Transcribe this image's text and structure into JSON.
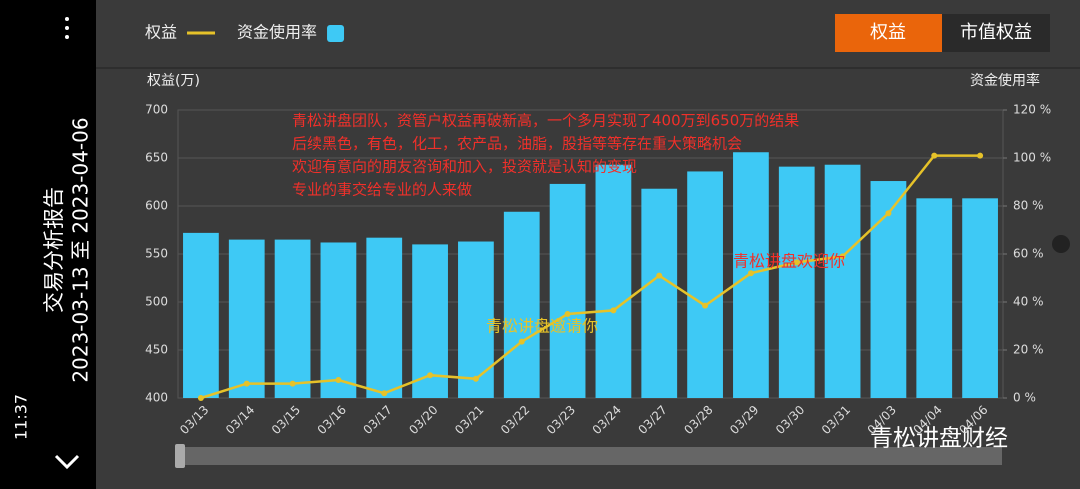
{
  "sidebar": {
    "time": "11:37",
    "title": "交易分析报告",
    "date_range": "2023-03-13 至 2023-04-06"
  },
  "buttons": [
    "权益",
    "市值权益"
  ],
  "watermark": "青松讲盘财经",
  "chart_data": {
    "type": "bar-line",
    "y_label": "权益(万)",
    "y2_label": "资金使用率",
    "annotations": [
      "青松讲盘团队，资管户权益再破新高，一个多月实现了400万到650万的结果",
      "后续黑色，有色，化工，农产品，油脂，股指等等存在重大策略机会",
      "欢迎有意向的朋友咨询和加入，投资就是认知的变现",
      "专业的事交给专业的人来做"
    ],
    "line_annotation": "青松讲盘邀请你",
    "bar_annotation": "青松讲盘欢迎你",
    "categories": [
      "03/13",
      "03/14",
      "03/15",
      "03/16",
      "03/17",
      "03/20",
      "03/21",
      "03/22",
      "03/23",
      "03/24",
      "03/27",
      "03/28",
      "03/29",
      "03/30",
      "03/31",
      "04/03",
      "04/04",
      "04/06"
    ],
    "series": [
      {
        "name": "权益",
        "type": "line",
        "axis": "y2",
        "color": "#e6c229",
        "values": [
          0,
          6,
          6,
          7.5,
          2,
          9.5,
          8,
          23.5,
          35,
          36.5,
          51,
          38.5,
          52,
          56.5,
          59,
          77,
          101,
          101
        ]
      },
      {
        "name": "资金使用率",
        "type": "bar",
        "color": "#3ec9f5",
        "values": [
          572,
          565,
          565,
          562,
          567,
          560,
          563,
          594,
          623,
          643,
          618,
          636,
          656,
          641,
          643,
          626,
          608,
          608
        ]
      }
    ],
    "ylim": [
      400,
      700
    ],
    "yticks": [
      400,
      450,
      500,
      550,
      600,
      650,
      700
    ],
    "y2lim": [
      0,
      120
    ],
    "y2ticks": [
      {
        "value": 0,
        "label": "0 %"
      },
      {
        "value": 20,
        "label": "20 %"
      },
      {
        "value": 40,
        "label": "40 %"
      },
      {
        "value": 60,
        "label": "60 %"
      },
      {
        "value": 80,
        "label": "80 %"
      },
      {
        "value": 100,
        "label": "100 %"
      },
      {
        "value": 120,
        "label": "120 %"
      }
    ],
    "grid": true
  }
}
